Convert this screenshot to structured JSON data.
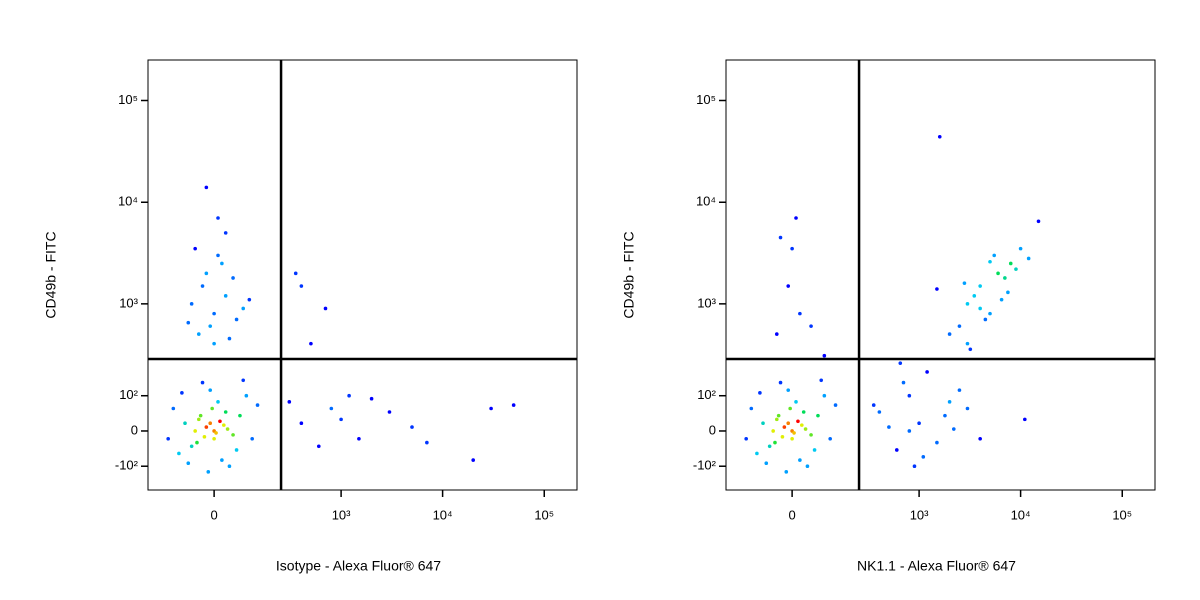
{
  "chart_data": [
    {
      "type": "scatter",
      "xlabel": "Isotype - Alexa Fluor® 647",
      "ylabel": "CD49b - FITC",
      "scale": "biexponential",
      "xlim": [
        -240,
        210000
      ],
      "ylim": [
        -200,
        250000
      ],
      "xticks": [
        0,
        {
          "value": 1000,
          "label": "10³"
        },
        {
          "value": 10000,
          "label": "10⁴"
        },
        {
          "value": 100000,
          "label": "10⁵"
        }
      ],
      "yticks": [
        {
          "value": -100,
          "label": "-10²"
        },
        0,
        {
          "value": 100,
          "label": "10²"
        },
        {
          "value": 1000,
          "label": "10³"
        },
        {
          "value": 10000,
          "label": "10⁴"
        },
        {
          "value": 100000,
          "label": "10⁵"
        }
      ],
      "gate_x": 245,
      "gate_y": 277,
      "gate_color": "#000000",
      "colormap": [
        "#0000ff",
        "#00c8ff",
        "#00e040",
        "#f0f000",
        "#ff0000"
      ],
      "x": [
        -20,
        -40,
        0,
        30,
        -60,
        10,
        -80,
        50,
        -10,
        70,
        -100,
        20,
        -30,
        90,
        -120,
        40,
        0,
        -50,
        15,
        -25,
        60,
        -90,
        110,
        -5,
        35,
        -70,
        80,
        -140,
        130,
        -15,
        -10,
        5,
        -35,
        25,
        -45,
        -40,
        0,
        30,
        -20,
        60,
        -60,
        10,
        40,
        -30,
        80,
        -10,
        20,
        -50,
        50,
        0,
        100,
        -70,
        30,
        -20,
        10,
        300,
        400,
        600,
        800,
        1000,
        1500,
        2000,
        3000,
        5000,
        7000,
        20000,
        50000,
        30000,
        400,
        700,
        350,
        500,
        1200
      ],
      "values": [
        10,
        30,
        -20,
        50,
        -40,
        80,
        20,
        -10,
        120,
        40,
        -60,
        -80,
        150,
        100,
        60,
        -100,
        0,
        0,
        25,
        -15,
        -50,
        110,
        -20,
        60,
        5,
        -90,
        160,
        -20,
        70,
        -120,
        20,
        -5,
        40,
        15,
        -30,
        500,
        800,
        1200,
        2000,
        700,
        1000,
        3000,
        450,
        1500,
        900,
        600,
        2500,
        3500,
        1800,
        400,
        1100,
        650,
        5000,
        14000,
        7000,
        80,
        20,
        -40,
        60,
        30,
        -20,
        90,
        50,
        10,
        -30,
        -80,
        70,
        60,
        1500,
        900,
        2000,
        400,
        100
      ]
    },
    {
      "type": "scatter",
      "xlabel": "NK1.1 - Alexa Fluor® 647",
      "ylabel": "CD49b - FITC",
      "scale": "biexponential",
      "xlim": [
        -240,
        210000
      ],
      "ylim": [
        -200,
        250000
      ],
      "xticks": [
        0,
        {
          "value": 1000,
          "label": "10³"
        },
        {
          "value": 10000,
          "label": "10⁴"
        },
        {
          "value": 100000,
          "label": "10⁵"
        }
      ],
      "yticks": [
        {
          "value": -100,
          "label": "-10²"
        },
        0,
        {
          "value": 100,
          "label": "10²"
        },
        {
          "value": 1000,
          "label": "10³"
        },
        {
          "value": 10000,
          "label": "10⁴"
        },
        {
          "value": 100000,
          "label": "10⁵"
        }
      ],
      "gate_x": 245,
      "gate_y": 277,
      "gate_color": "#000000",
      "colormap": [
        "#0000ff",
        "#00c8ff",
        "#00e040",
        "#f0f000",
        "#ff0000"
      ],
      "x": [
        -20,
        -40,
        0,
        30,
        -60,
        10,
        -80,
        50,
        -10,
        70,
        -100,
        20,
        -30,
        90,
        -120,
        40,
        0,
        -50,
        15,
        -25,
        60,
        -90,
        110,
        -5,
        35,
        -70,
        80,
        -140,
        130,
        -15,
        -10,
        5,
        -35,
        25,
        -45,
        -40,
        20,
        -10,
        50,
        -30,
        10,
        0,
        90,
        400,
        600,
        800,
        1000,
        1500,
        2000,
        700,
        900,
        1200,
        500,
        3000,
        4000,
        2500,
        1800,
        11000,
        650,
        350,
        1100,
        2200,
        800,
        3000,
        4000,
        5000,
        2500,
        6000,
        3500,
        8000,
        4500,
        2000,
        7000,
        5500,
        3000,
        10000,
        6500,
        4000,
        9000,
        2800,
        3200,
        5000,
        7500,
        12000,
        1500,
        15000,
        1600
      ],
      "values": [
        10,
        30,
        -20,
        50,
        -40,
        80,
        20,
        -10,
        120,
        40,
        -60,
        -80,
        150,
        100,
        60,
        -100,
        0,
        0,
        25,
        -15,
        -50,
        110,
        -20,
        60,
        5,
        -90,
        160,
        -20,
        70,
        -120,
        20,
        -5,
        40,
        15,
        -30,
        500,
        800,
        1500,
        600,
        4500,
        7000,
        3500,
        300,
        50,
        -50,
        100,
        20,
        -30,
        80,
        150,
        -100,
        200,
        10,
        60,
        -20,
        120,
        40,
        30,
        250,
        70,
        -70,
        5,
        0,
        1000,
        1500,
        800,
        600,
        2000,
        1200,
        2500,
        700,
        500,
        1800,
        3000,
        400,
        3500,
        1100,
        900,
        2200,
        1600,
        350,
        2600,
        1300,
        2800,
        1400,
        6500,
        44000
      ]
    }
  ]
}
